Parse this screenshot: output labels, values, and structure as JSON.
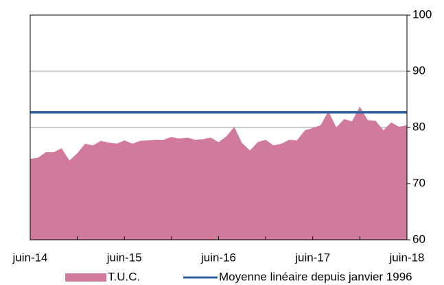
{
  "chart_data": {
    "type": "area",
    "categories": [
      "juin-14",
      null,
      null,
      null,
      null,
      null,
      null,
      null,
      null,
      null,
      null,
      null,
      "juin-15",
      null,
      null,
      null,
      null,
      null,
      null,
      null,
      null,
      null,
      null,
      null,
      "juin-16",
      null,
      null,
      null,
      null,
      null,
      null,
      null,
      null,
      null,
      null,
      null,
      "juin-17",
      null,
      null,
      null,
      null,
      null,
      null,
      null,
      null,
      null,
      null,
      null,
      "juin-18"
    ],
    "series": [
      {
        "name": "T.U.C.",
        "type": "area",
        "color": "#d17a9c",
        "values": [
          74.4,
          74.6,
          75.6,
          75.6,
          76.3,
          74.1,
          75.4,
          77.1,
          76.8,
          77.6,
          77.3,
          77.1,
          77.7,
          77.1,
          77.6,
          77.7,
          77.8,
          77.8,
          78.3,
          78.0,
          78.2,
          77.8,
          77.9,
          78.2,
          77.4,
          78.4,
          80.1,
          77.2,
          75.9,
          77.4,
          77.8,
          76.8,
          77.1,
          77.8,
          77.7,
          79.5,
          79.9,
          80.4,
          82.9,
          80.0,
          81.5,
          81.1,
          83.7,
          81.3,
          81.2,
          79.5,
          80.9,
          80.1,
          80.4
        ]
      },
      {
        "name": "Moyenne linéaire depuis janvier 1996",
        "type": "line",
        "color": "#2e5f9e",
        "values": [
          82.7,
          82.7,
          82.7,
          82.7,
          82.7,
          82.7,
          82.7,
          82.7,
          82.7,
          82.7,
          82.7,
          82.7,
          82.7,
          82.7,
          82.7,
          82.7,
          82.7,
          82.7,
          82.7,
          82.7,
          82.7,
          82.7,
          82.7,
          82.7,
          82.7,
          82.7,
          82.7,
          82.7,
          82.7,
          82.7,
          82.7,
          82.7,
          82.7,
          82.7,
          82.7,
          82.7,
          82.7,
          82.7,
          82.7,
          82.7,
          82.7,
          82.7,
          82.7,
          82.7,
          82.7,
          82.7,
          82.7,
          82.7,
          82.7
        ]
      }
    ],
    "ylim": [
      60,
      100
    ],
    "yticks": [
      60,
      70,
      80,
      90,
      100
    ],
    "y_axis_side": "right",
    "grid": true,
    "legend": "bottom"
  }
}
